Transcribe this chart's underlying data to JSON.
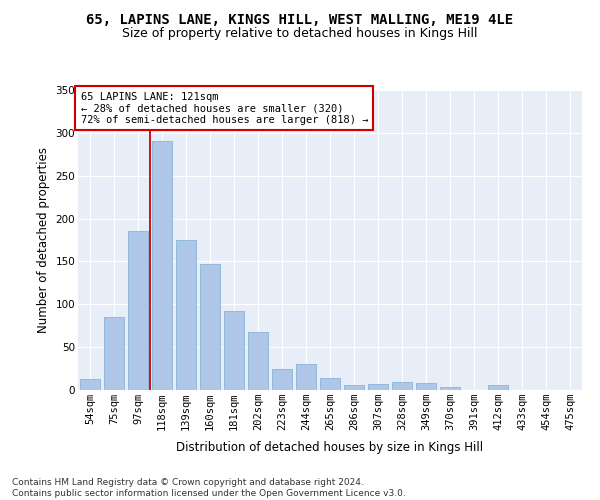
{
  "title": "65, LAPINS LANE, KINGS HILL, WEST MALLING, ME19 4LE",
  "subtitle": "Size of property relative to detached houses in Kings Hill",
  "xlabel": "Distribution of detached houses by size in Kings Hill",
  "ylabel": "Number of detached properties",
  "categories": [
    "54sqm",
    "75sqm",
    "97sqm",
    "118sqm",
    "139sqm",
    "160sqm",
    "181sqm",
    "202sqm",
    "223sqm",
    "244sqm",
    "265sqm",
    "286sqm",
    "307sqm",
    "328sqm",
    "349sqm",
    "370sqm",
    "391sqm",
    "412sqm",
    "433sqm",
    "454sqm",
    "475sqm"
  ],
  "values": [
    13,
    85,
    185,
    290,
    175,
    147,
    92,
    68,
    25,
    30,
    14,
    6,
    7,
    9,
    8,
    3,
    0,
    6,
    0,
    0,
    0
  ],
  "bar_color": "#aec6e8",
  "bar_edge_color": "#7bacd4",
  "vline_color": "#cc0000",
  "vline_x_index": 3,
  "annotation_line1": "65 LAPINS LANE: 121sqm",
  "annotation_line2": "← 28% of detached houses are smaller (320)",
  "annotation_line3": "72% of semi-detached houses are larger (818) →",
  "annotation_box_color": "#ffffff",
  "annotation_box_edge": "#cc0000",
  "ylim": [
    0,
    350
  ],
  "yticks": [
    0,
    50,
    100,
    150,
    200,
    250,
    300,
    350
  ],
  "bg_color": "#e8eef8",
  "footer": "Contains HM Land Registry data © Crown copyright and database right 2024.\nContains public sector information licensed under the Open Government Licence v3.0.",
  "title_fontsize": 10,
  "subtitle_fontsize": 9,
  "label_fontsize": 8.5,
  "tick_fontsize": 7.5,
  "footer_fontsize": 6.5,
  "annotation_fontsize": 7.5
}
